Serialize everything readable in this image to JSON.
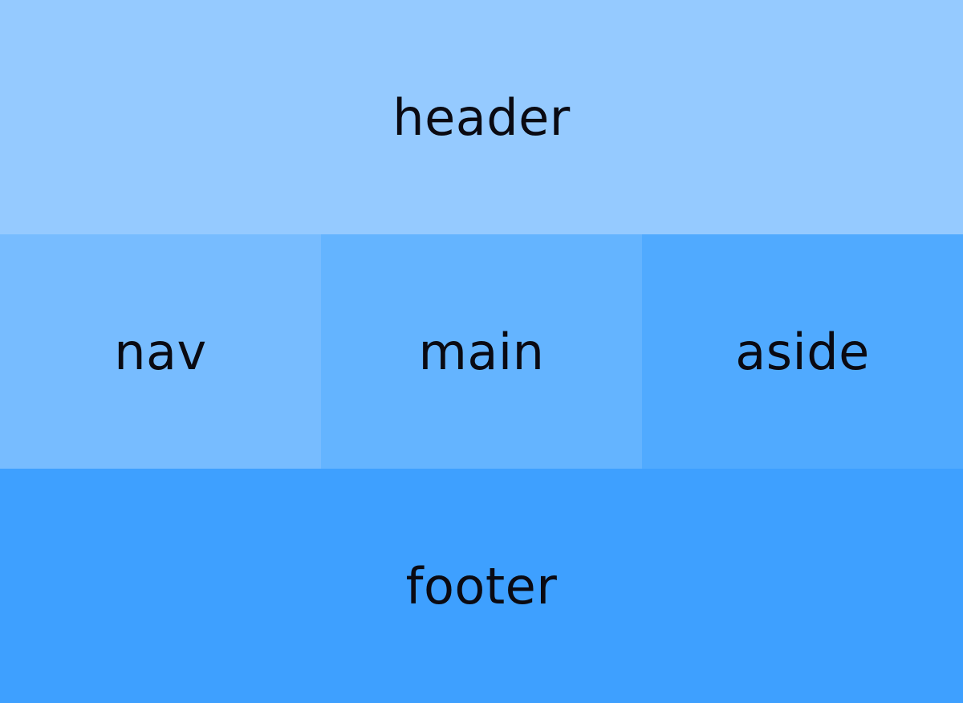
{
  "regions": {
    "header": {
      "label": "header",
      "color": "#95caff"
    },
    "nav": {
      "label": "nav",
      "color": "#77bcff"
    },
    "main": {
      "label": "main",
      "color": "#64b4ff"
    },
    "aside": {
      "label": "aside",
      "color": "#50aaff"
    },
    "footer": {
      "label": "footer",
      "color": "#3ea0ff"
    }
  }
}
